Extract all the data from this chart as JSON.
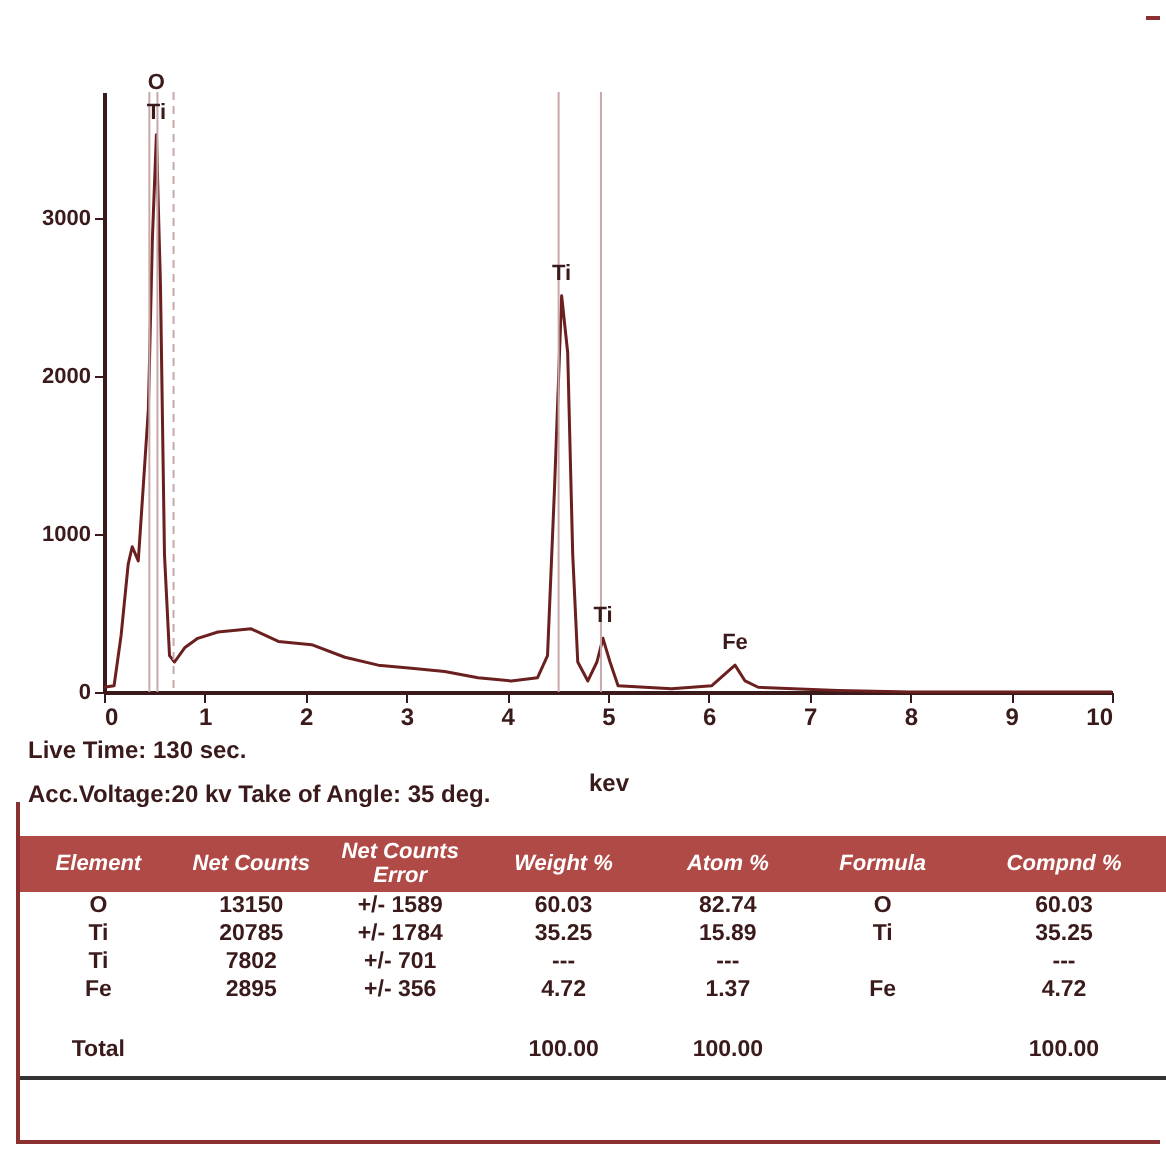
{
  "chart_data": [
    {
      "type": "line",
      "xlabel": "kev",
      "xlim": [
        0,
        10
      ],
      "xticks": [
        0,
        1,
        2,
        3,
        4,
        5,
        6,
        7,
        8,
        9,
        10
      ],
      "ylim": [
        0,
        3800
      ],
      "yticks": [
        0,
        1000,
        2000,
        3000
      ],
      "grid": false,
      "legend": false,
      "x": [
        0,
        0.1,
        0.17,
        0.24,
        0.28,
        0.34,
        0.38,
        0.44,
        0.48,
        0.52,
        0.56,
        0.6,
        0.65,
        0.7,
        0.8,
        0.93,
        1.13,
        1.46,
        1.73,
        2.06,
        2.39,
        2.72,
        3.05,
        3.38,
        3.71,
        4.04,
        4.3,
        4.4,
        4.47,
        4.54,
        4.6,
        4.65,
        4.7,
        4.8,
        4.89,
        4.95,
        5.02,
        5.1,
        5.63,
        6.03,
        6.19,
        6.26,
        6.36,
        6.49,
        7.28,
        8,
        8.5,
        10
      ],
      "series": [
        {
          "color": "#6b1f1f",
          "values": [
            30,
            40,
            360,
            810,
            920,
            830,
            1210,
            1790,
            2870,
            3530,
            2580,
            870,
            230,
            190,
            280,
            340,
            380,
            400,
            320,
            300,
            220,
            170,
            150,
            130,
            90,
            70,
            90,
            230,
            1300,
            2510,
            2150,
            870,
            190,
            70,
            190,
            340,
            190,
            40,
            20,
            40,
            130,
            170,
            70,
            30,
            10,
            0,
            0,
            0
          ]
        }
      ],
      "ref_lines": [
        {
          "axis": "x",
          "value": 0.45,
          "color": "#c8a8a8"
        },
        {
          "axis": "x",
          "value": 0.53,
          "color": "#c8a8a8"
        },
        {
          "axis": "x",
          "value": 0.69,
          "color": "#c8a8a8",
          "line_style": "dashed"
        },
        {
          "axis": "x",
          "value": 4.51,
          "color": "#c8a8a8"
        },
        {
          "axis": "x",
          "value": 4.93,
          "color": "#c8a8a8"
        }
      ],
      "annotations": [
        {
          "text": "O",
          "x": 0.52,
          "y": 3530
        },
        {
          "text": "Ti",
          "x": 0.52,
          "y": 3530
        },
        {
          "text": "Ti",
          "x": 4.54,
          "y": 2510
        },
        {
          "text": "Ti",
          "x": 4.95,
          "y": 340
        },
        {
          "text": "Fe",
          "x": 6.26,
          "y": 170
        },
        "Live Time: 130 sec.",
        "Acc.Voltage:20 kv Take of Angle: 35 deg."
      ]
    },
    {
      "type": "other",
      "categories": [
        "Element",
        "Net Counts",
        "Net Counts Error",
        "Weight %",
        "Atom %",
        "Formula",
        "Compnd %"
      ],
      "cell_labels": [
        [
          "O",
          "13150",
          "+/- 1589",
          "60.03",
          "82.74",
          "O",
          "60.03"
        ],
        [
          "Ti",
          "20785",
          "+/- 1784",
          "35.25",
          "15.89",
          "Ti",
          "35.25"
        ],
        [
          "Ti",
          "7802",
          "+/- 701",
          "---",
          "---",
          null,
          "---"
        ],
        [
          "Fe",
          "2895",
          "+/- 356",
          "4.72",
          "1.37",
          "Fe",
          "4.72"
        ],
        [
          "Total",
          null,
          null,
          "100.00",
          "100.00",
          null,
          "100.00"
        ]
      ]
    }
  ]
}
